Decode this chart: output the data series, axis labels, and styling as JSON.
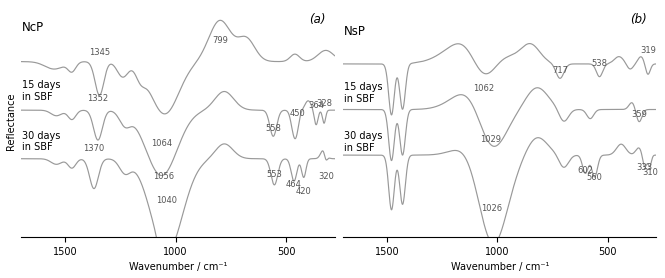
{
  "panel_a_tag": "(a)",
  "panel_b_tag": "(b)",
  "xlabel": "Wavenumber / cm⁻¹",
  "ylabel": "Reflectance",
  "xmin": 1700,
  "xmax": 280,
  "xticks": [
    1500,
    1000,
    500
  ],
  "curve_color": "#999999",
  "curve_linewidth": 0.85,
  "label_fontsize": 7.0,
  "tag_fontsize": 8.5,
  "annot_fontsize": 6.0,
  "offsets_a": [
    0.52,
    0.26,
    0.0
  ],
  "offsets_b": [
    0.5,
    0.25,
    0.0
  ]
}
